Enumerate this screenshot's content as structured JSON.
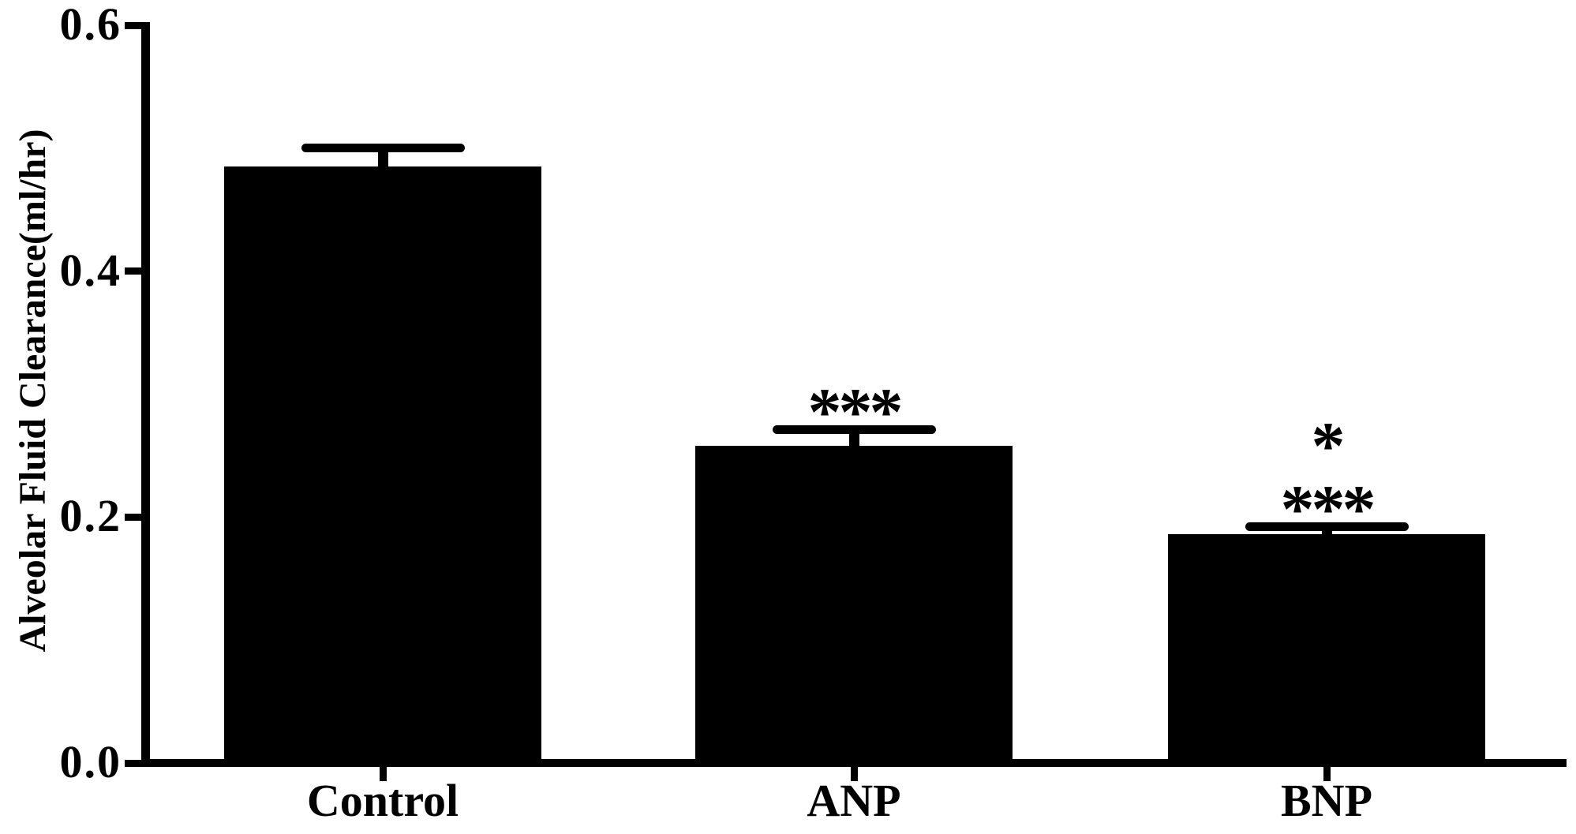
{
  "figure": {
    "background": "#ffffff",
    "ink": "#000000"
  },
  "chart_data": {
    "type": "bar",
    "title": "",
    "xlabel": "",
    "ylabel": "Alveolar Fluid Clearance(ml/hr)",
    "categories": [
      "Control",
      "ANP",
      "BNP"
    ],
    "values": [
      0.485,
      0.258,
      0.186
    ],
    "errors": [
      0.015,
      0.013,
      0.006
    ],
    "error_style": "upper SEM bar with cap",
    "annotations": [
      [],
      [
        "***"
      ],
      [
        "*",
        "***"
      ]
    ],
    "yticks": [
      "0.0",
      "0.2",
      "0.4",
      "0.6"
    ],
    "ylim": [
      0,
      0.6
    ],
    "bar_color": "#000000",
    "grid": false,
    "legend": false
  }
}
